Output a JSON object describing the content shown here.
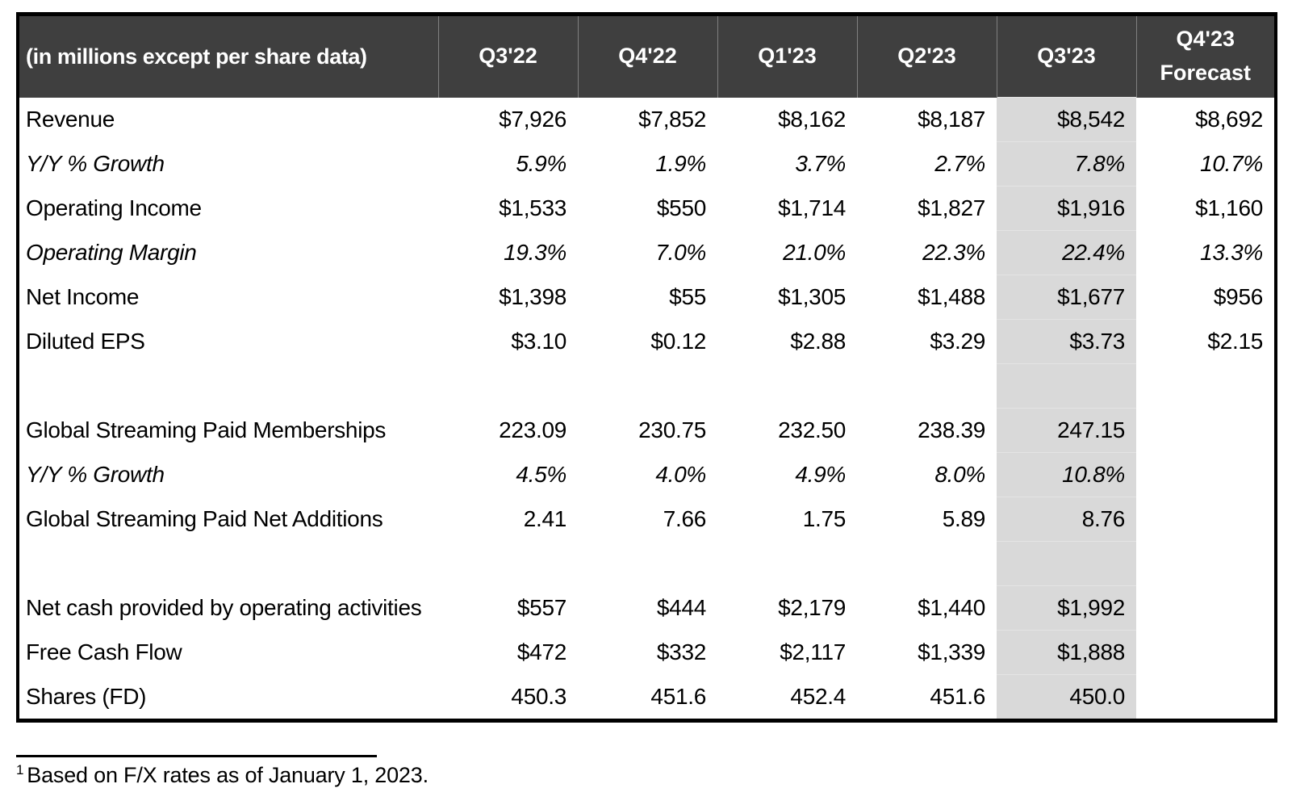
{
  "chart_data": {
    "type": "table",
    "corner_label": "(in millions except per share data)",
    "columns": [
      "Q3'22",
      "Q4'22",
      "Q1'23",
      "Q2'23",
      "Q3'23",
      "Q4'23 Forecast"
    ],
    "highlighted_column": "Q3'23",
    "highlighted_column_index": 4,
    "rows": [
      {
        "label": "Revenue",
        "italic": false,
        "values": [
          "$7,926",
          "$7,852",
          "$8,162",
          "$8,187",
          "$8,542",
          "$8,692"
        ]
      },
      {
        "label": "Y/Y % Growth",
        "italic": true,
        "values": [
          "5.9%",
          "1.9%",
          "3.7%",
          "2.7%",
          "7.8%",
          "10.7%"
        ]
      },
      {
        "label": "Operating Income",
        "italic": false,
        "values": [
          "$1,533",
          "$550",
          "$1,714",
          "$1,827",
          "$1,916",
          "$1,160"
        ]
      },
      {
        "label": "Operating Margin",
        "italic": true,
        "values": [
          "19.3%",
          "7.0%",
          "21.0%",
          "22.3%",
          "22.4%",
          "13.3%"
        ]
      },
      {
        "label": "Net Income",
        "italic": false,
        "values": [
          "$1,398",
          "$55",
          "$1,305",
          "$1,488",
          "$1,677",
          "$956"
        ]
      },
      {
        "label": "Diluted EPS",
        "italic": false,
        "values": [
          "$3.10",
          "$0.12",
          "$2.88",
          "$3.29",
          "$3.73",
          "$2.15"
        ]
      },
      {
        "type": "spacer",
        "label": "",
        "values": [
          "",
          "",
          "",
          "",
          "",
          ""
        ]
      },
      {
        "label": "Global Streaming Paid Memberships",
        "italic": false,
        "values": [
          "223.09",
          "230.75",
          "232.50",
          "238.39",
          "247.15",
          ""
        ]
      },
      {
        "label": "Y/Y % Growth",
        "italic": true,
        "values": [
          "4.5%",
          "4.0%",
          "4.9%",
          "8.0%",
          "10.8%",
          ""
        ]
      },
      {
        "label": "Global Streaming Paid Net Additions",
        "italic": false,
        "values": [
          "2.41",
          "7.66",
          "1.75",
          "5.89",
          "8.76",
          ""
        ]
      },
      {
        "type": "spacer",
        "label": "",
        "values": [
          "",
          "",
          "",
          "",
          "",
          ""
        ]
      },
      {
        "label": "Net cash provided by operating activities",
        "italic": false,
        "values": [
          "$557",
          "$444",
          "$2,179",
          "$1,440",
          "$1,992",
          ""
        ]
      },
      {
        "label": "Free Cash Flow",
        "italic": false,
        "values": [
          "$472",
          "$332",
          "$2,117",
          "$1,339",
          "$1,888",
          ""
        ]
      },
      {
        "label": "Shares (FD)",
        "italic": false,
        "values": [
          "450.3",
          "451.6",
          "452.4",
          "451.6",
          "450.0",
          ""
        ]
      }
    ],
    "footnote_marker": "1",
    "footnote": "Based on F/X rates as of January 1, 2023."
  },
  "colors": {
    "header_bg": "#3F3F3F",
    "header_text": "#FFFFFF",
    "header_divider": "#808080",
    "highlight_bg": "#D9D9D9",
    "highlight_gridline": "#E4E4E4",
    "body_text": "#000000",
    "table_border": "#000000"
  }
}
